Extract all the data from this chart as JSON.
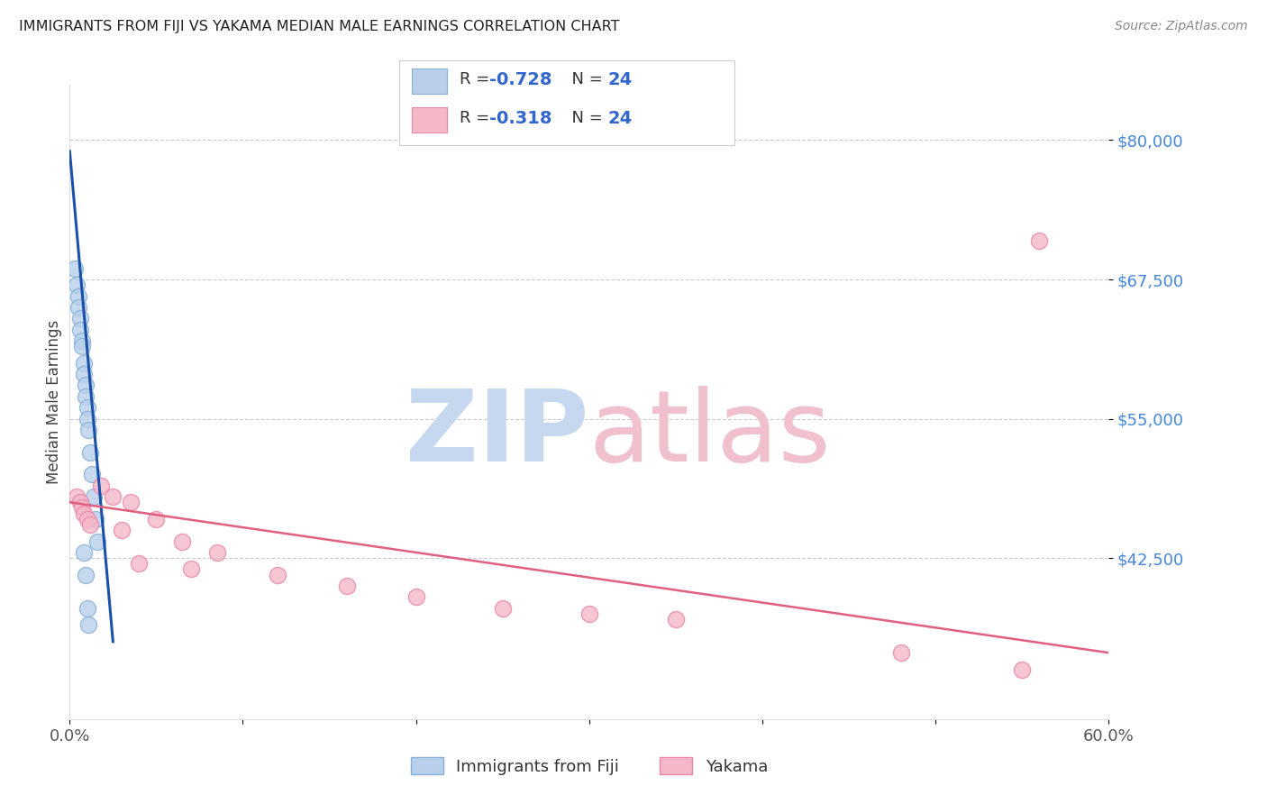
{
  "title": "IMMIGRANTS FROM FIJI VS YAKAMA MEDIAN MALE EARNINGS CORRELATION CHART",
  "source": "Source: ZipAtlas.com",
  "ylabel": "Median Male Earnings",
  "xlim": [
    0.0,
    0.6
  ],
  "ylim": [
    28000,
    85000
  ],
  "yticks": [
    42500,
    55000,
    67500,
    80000
  ],
  "ytick_labels": [
    "$42,500",
    "$55,000",
    "$67,500",
    "$80,000"
  ],
  "xticks": [
    0.0,
    0.1,
    0.2,
    0.3,
    0.4,
    0.5,
    0.6
  ],
  "xtick_labels": [
    "0.0%",
    "",
    "",
    "",
    "",
    "",
    "60.0%"
  ],
  "legend_entries": [
    {
      "label": "Immigrants from Fiji",
      "R": -0.728,
      "N": 24,
      "face_color": "#b8d0ec",
      "edge_color": "#8ab0d8"
    },
    {
      "label": "Yakama",
      "R": -0.318,
      "N": 24,
      "face_color": "#f5b8c8",
      "edge_color": "#e888a8"
    }
  ],
  "fiji_scatter_x": [
    0.003,
    0.004,
    0.005,
    0.005,
    0.006,
    0.006,
    0.007,
    0.007,
    0.008,
    0.008,
    0.009,
    0.009,
    0.01,
    0.01,
    0.011,
    0.012,
    0.013,
    0.014,
    0.015,
    0.016,
    0.008,
    0.009,
    0.01,
    0.011
  ],
  "fiji_scatter_y": [
    68500,
    67000,
    66000,
    65000,
    64000,
    63000,
    62000,
    61500,
    60000,
    59000,
    58000,
    57000,
    56000,
    55000,
    54000,
    52000,
    50000,
    48000,
    46000,
    44000,
    43000,
    41000,
    38000,
    36500
  ],
  "yakama_scatter_x": [
    0.004,
    0.006,
    0.007,
    0.008,
    0.01,
    0.012,
    0.018,
    0.025,
    0.035,
    0.05,
    0.065,
    0.085,
    0.12,
    0.16,
    0.2,
    0.25,
    0.3,
    0.35,
    0.04,
    0.07,
    0.48,
    0.55,
    0.56,
    0.03
  ],
  "yakama_scatter_y": [
    48000,
    47500,
    47000,
    46500,
    46000,
    45500,
    49000,
    48000,
    47500,
    46000,
    44000,
    43000,
    41000,
    40000,
    39000,
    38000,
    37500,
    37000,
    42000,
    41500,
    34000,
    32500,
    71000,
    45000
  ],
  "fiji_line_x": [
    0.0,
    0.025
  ],
  "fiji_line_y": [
    79000,
    35000
  ],
  "yakama_line_x": [
    0.0,
    0.6
  ],
  "yakama_line_y": [
    47500,
    34000
  ],
  "scatter_size": 170,
  "fiji_face_color": "#b8d0ec",
  "fiji_edge_color": "#88b0d4",
  "yakama_face_color": "#f5b8c8",
  "yakama_edge_color": "#e888a8",
  "line_fiji_color": "#1a50aa",
  "line_yakama_color": "#e06080",
  "background_color": "#ffffff",
  "title_color": "#222222",
  "source_color": "#888888",
  "ylabel_color": "#444444",
  "ytick_color": "#4488dd",
  "xtick_color": "#555555",
  "grid_color": "#cccccc",
  "watermark_zip_color": "#c5d8f0",
  "watermark_atlas_color": "#f0c0cc",
  "legend_text_color": "#3366cc",
  "legend_label_color": "#333333"
}
